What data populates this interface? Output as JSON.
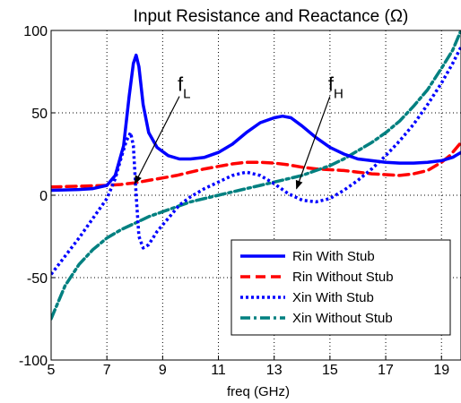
{
  "chart_data": {
    "type": "line",
    "title": "Input Resistance and Reactance (Ω)",
    "xlabel": "freq (GHz)",
    "ylabel": "",
    "xlim": [
      5,
      19.7
    ],
    "ylim": [
      -100,
      100
    ],
    "xticks": [
      5,
      7,
      9,
      11,
      13,
      15,
      17,
      19
    ],
    "yticks": [
      -100,
      -50,
      0,
      50,
      100
    ],
    "xtick_labels": [
      "5",
      "7",
      "9",
      "11",
      "13",
      "15",
      "17",
      "19"
    ],
    "ytick_labels": [
      "-100",
      "-50",
      "0",
      "50",
      "100"
    ],
    "grid": true,
    "legend_position": "bottom-right",
    "series": [
      {
        "name": "Rin With Stub",
        "color": "#0000ff",
        "style": "solid",
        "x": [
          5,
          6,
          6.5,
          7,
          7.3,
          7.6,
          7.8,
          7.95,
          8.05,
          8.15,
          8.3,
          8.5,
          8.8,
          9.2,
          9.6,
          10,
          10.5,
          11,
          11.5,
          12,
          12.5,
          13,
          13.3,
          13.6,
          14,
          14.5,
          15,
          15.5,
          16,
          16.5,
          17,
          17.5,
          18,
          18.5,
          19,
          19.4,
          19.7
        ],
        "y": [
          3,
          3.5,
          4,
          6,
          12,
          30,
          60,
          80,
          85,
          78,
          55,
          38,
          29,
          24,
          22,
          22,
          23,
          26,
          31,
          38,
          44,
          47,
          48,
          47,
          42,
          35,
          29,
          25,
          22,
          21,
          20,
          19.5,
          19.5,
          20,
          21,
          23,
          26
        ]
      },
      {
        "name": "Rin Without Stub",
        "color": "#ff0000",
        "style": "dashed",
        "x": [
          5,
          6,
          7,
          7.5,
          8,
          8.5,
          9,
          9.5,
          10,
          10.5,
          11,
          11.5,
          12,
          12.5,
          13,
          13.5,
          14,
          14.5,
          15,
          15.5,
          16,
          16.5,
          17,
          17.5,
          18,
          18.5,
          19,
          19.3,
          19.5,
          19.7
        ],
        "y": [
          5,
          5.5,
          6,
          6.5,
          7.5,
          9,
          10.5,
          12,
          14,
          16,
          17.5,
          19,
          20,
          20,
          19.5,
          18.5,
          17,
          16,
          15.5,
          15,
          14,
          13,
          12.5,
          12,
          13,
          15,
          20,
          24,
          28,
          32
        ]
      },
      {
        "name": "Xin With Stub",
        "color": "#0000ff",
        "style": "dotted",
        "x": [
          5,
          5.5,
          6,
          6.5,
          7,
          7.3,
          7.5,
          7.7,
          7.85,
          7.95,
          8.05,
          8.15,
          8.3,
          8.5,
          8.8,
          9.2,
          9.6,
          10,
          10.5,
          11,
          11.5,
          12,
          12.5,
          13,
          13.5,
          14,
          14.5,
          15,
          15.5,
          16,
          16.5,
          17,
          17.5,
          18,
          18.5,
          19,
          19.4,
          19.7
        ],
        "y": [
          -48,
          -37,
          -26,
          -14,
          -2,
          10,
          22,
          33,
          38,
          30,
          0,
          -25,
          -32,
          -30,
          -22,
          -14,
          -6,
          -1,
          4,
          8,
          12,
          14,
          12,
          7,
          1,
          -3,
          -4,
          -2,
          3,
          9,
          16,
          24,
          33,
          43,
          55,
          68,
          80,
          90
        ]
      },
      {
        "name": "Xin Without Stub",
        "color": "#008080",
        "style": "dashdot",
        "x": [
          5,
          5.5,
          6,
          6.5,
          7,
          7.5,
          8,
          8.5,
          9,
          9.5,
          10,
          10.5,
          11,
          11.5,
          12,
          12.5,
          13,
          13.5,
          14,
          14.5,
          15,
          15.5,
          16,
          16.5,
          17,
          17.5,
          18,
          18.5,
          19,
          19.4,
          19.7
        ],
        "y": [
          -75,
          -55,
          -42,
          -33,
          -26,
          -21,
          -17,
          -13,
          -10,
          -7,
          -4,
          -2,
          0,
          2,
          4,
          6,
          8,
          10,
          12,
          15,
          18,
          22,
          27,
          32,
          38,
          45,
          54,
          64,
          77,
          88,
          100
        ]
      }
    ],
    "annotations": [
      {
        "main": "f",
        "sub": "L",
        "from": [
          9.6,
          60
        ],
        "to": [
          8.0,
          7
        ]
      },
      {
        "main": "f",
        "sub": "H",
        "from": [
          15.0,
          60
        ],
        "to": [
          13.8,
          4
        ]
      }
    ]
  }
}
